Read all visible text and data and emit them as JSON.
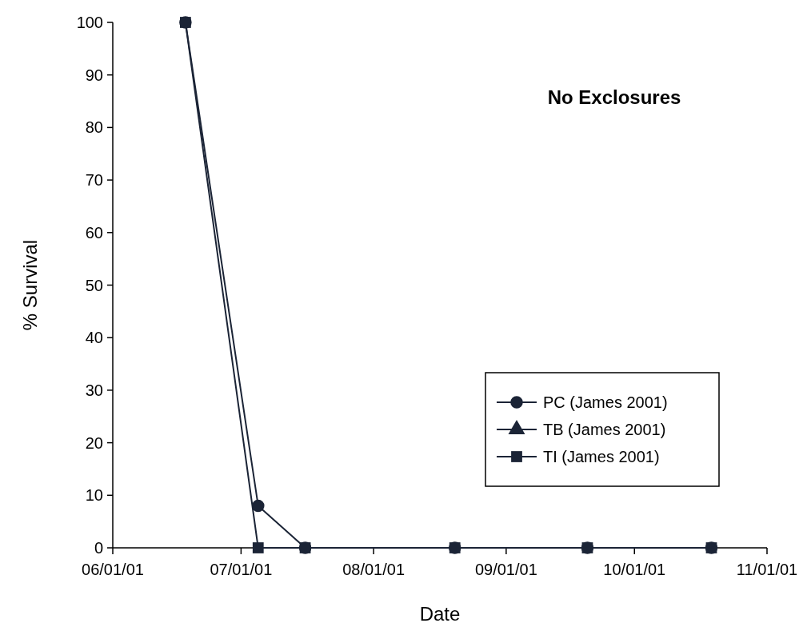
{
  "chart_data": {
    "type": "line",
    "title": "No Exclosures",
    "xlabel": "Date",
    "ylabel": "% Survival",
    "x": [
      "2001-06-18",
      "2001-07-05",
      "2001-07-16",
      "2001-08-20",
      "2001-09-20",
      "2001-10-19"
    ],
    "series": [
      {
        "name": "PC (James 2001)",
        "color": "#1b2436",
        "marker": "circle",
        "values": [
          100,
          8,
          0,
          0,
          0,
          0
        ]
      },
      {
        "name": "TB (James 2001)",
        "color": "#1b2436",
        "marker": "triangle",
        "values": [
          null,
          null,
          null,
          null,
          null,
          null
        ]
      },
      {
        "name": "TI (James 2001)",
        "color": "#1b2436",
        "marker": "square",
        "values": [
          100,
          0,
          0,
          0,
          0,
          0
        ]
      }
    ],
    "xlim": [
      "2001-06-01",
      "2001-11-01"
    ],
    "xticks": [
      {
        "value": "2001-06-01",
        "label": "06/01/01"
      },
      {
        "value": "2001-07-01",
        "label": "07/01/01"
      },
      {
        "value": "2001-08-01",
        "label": "08/01/01"
      },
      {
        "value": "2001-09-01",
        "label": "09/01/01"
      },
      {
        "value": "2001-10-01",
        "label": "10/01/01"
      },
      {
        "value": "2001-11-01",
        "label": "11/01/01"
      }
    ],
    "ylim": [
      0,
      100
    ],
    "yticks": [
      0,
      10,
      20,
      30,
      40,
      50,
      60,
      70,
      80,
      90,
      100
    ],
    "grid": false,
    "legend": "bottom right",
    "line_style": "solid"
  }
}
